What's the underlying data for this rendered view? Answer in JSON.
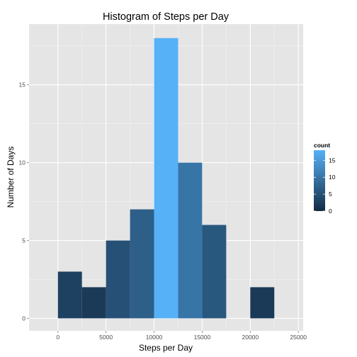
{
  "chart_data": {
    "type": "bar",
    "title": "Histogram of Steps per Day",
    "xlabel": "Steps per Day",
    "ylabel": "Number of Days",
    "xlim": [
      -3000,
      25500
    ],
    "ylim": [
      -0.8,
      18.9
    ],
    "x_ticks": [
      0,
      5000,
      10000,
      15000,
      20000,
      25000
    ],
    "x_tick_labels": [
      "0",
      "5000",
      "10000",
      "15000",
      "20000",
      "25000"
    ],
    "y_ticks": [
      0,
      5,
      10,
      15
    ],
    "y_tick_labels": [
      "0",
      "5",
      "10",
      "15"
    ],
    "bin_width": 2500,
    "bins": [
      {
        "start": 0,
        "end": 2500,
        "count": 3
      },
      {
        "start": 2500,
        "end": 5000,
        "count": 2
      },
      {
        "start": 5000,
        "end": 7500,
        "count": 5
      },
      {
        "start": 7500,
        "end": 10000,
        "count": 7
      },
      {
        "start": 10000,
        "end": 12500,
        "count": 18
      },
      {
        "start": 12500,
        "end": 15000,
        "count": 10
      },
      {
        "start": 15000,
        "end": 17500,
        "count": 6
      },
      {
        "start": 17500,
        "end": 20000,
        "count": 0
      },
      {
        "start": 20000,
        "end": 22500,
        "count": 2
      }
    ],
    "grid": true,
    "legend": {
      "title": "count",
      "placement": "right",
      "ticks": [
        0,
        5,
        10,
        15
      ],
      "tick_labels": [
        "0",
        "5",
        "10",
        "15"
      ],
      "range": [
        0,
        18
      ],
      "low_color": "#132B43",
      "high_color": "#56B1F7"
    },
    "panel_background": "#E5E5E5",
    "grid_color": "#FFFFFF"
  }
}
